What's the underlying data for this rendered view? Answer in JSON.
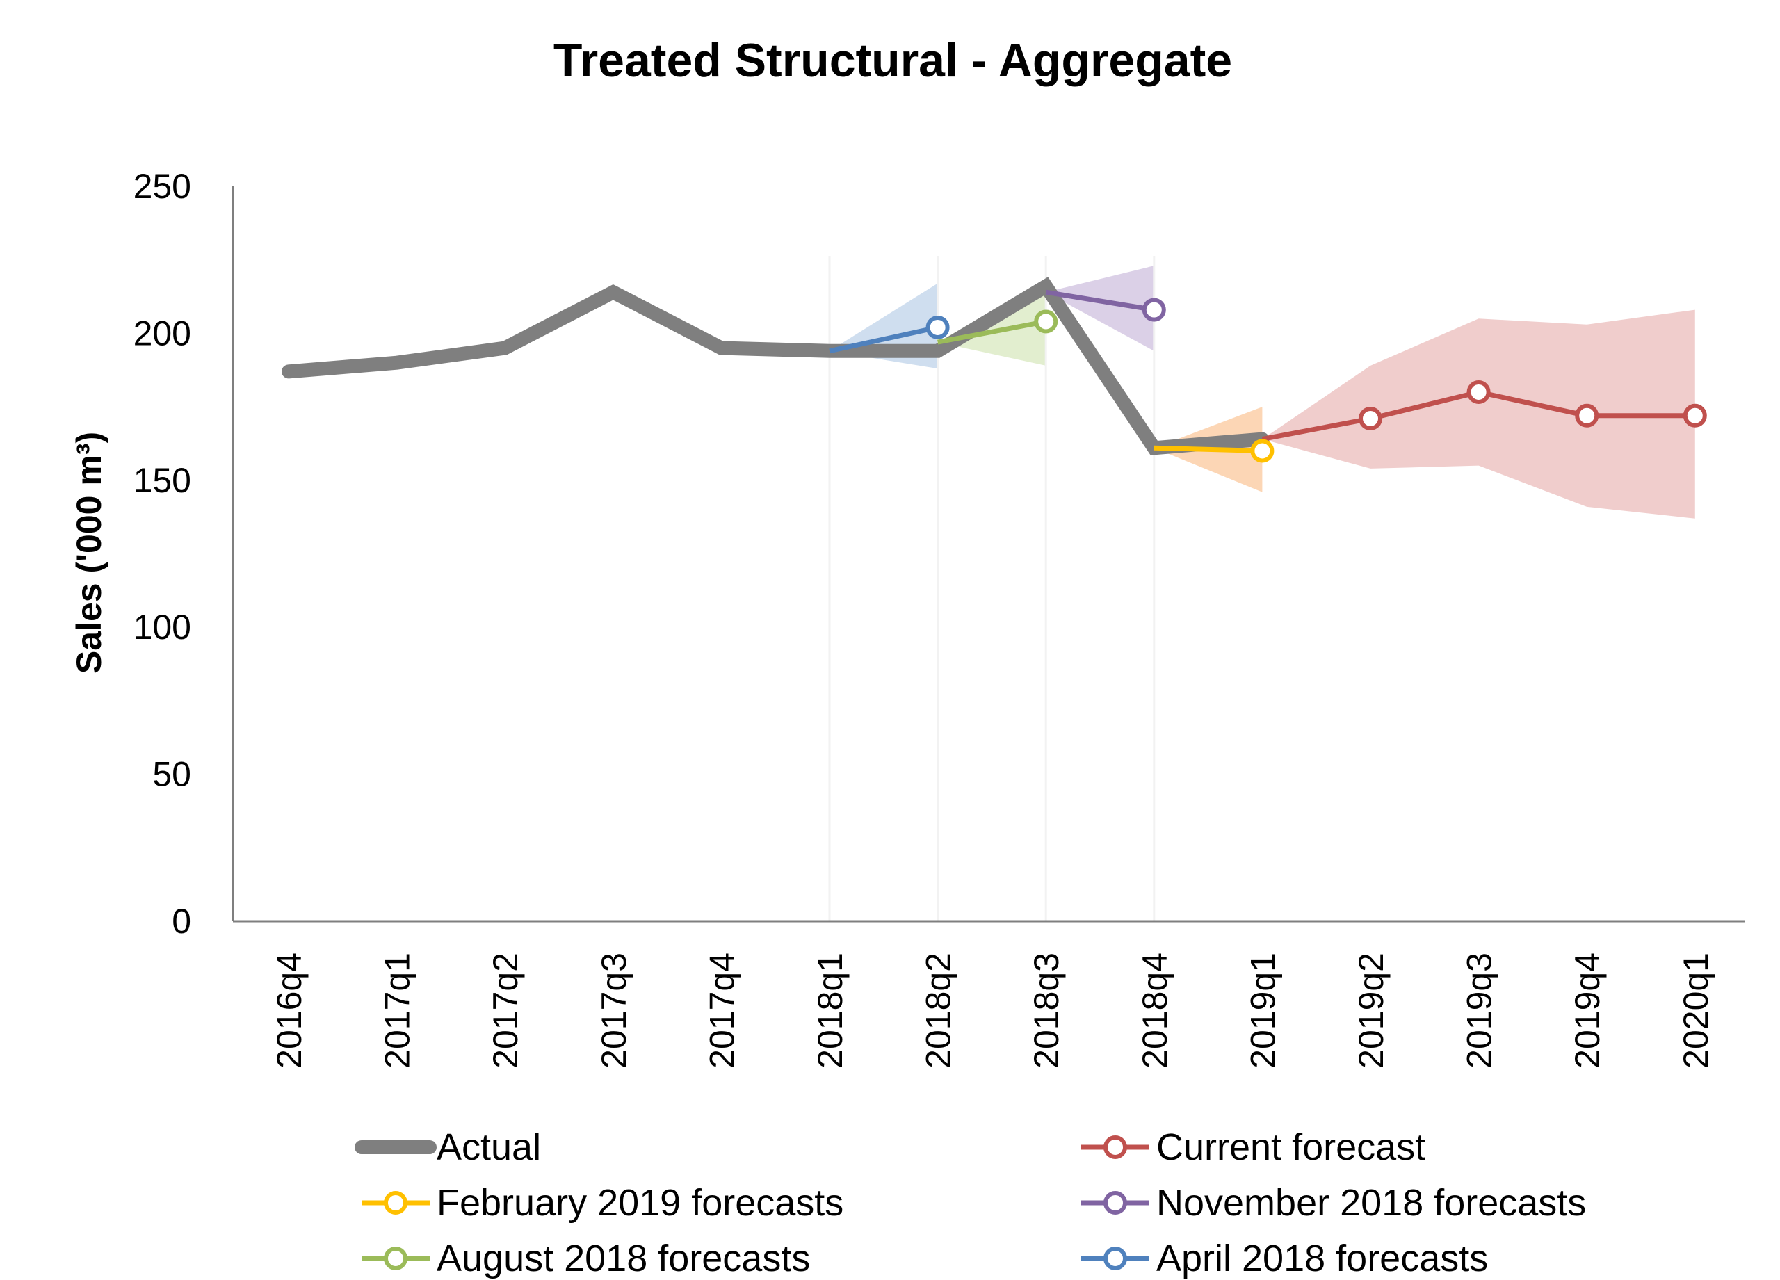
{
  "chart_data": {
    "type": "line",
    "title": "Treated Structural - Aggregate",
    "xlabel": "",
    "ylabel": "Sales ('000 m³)",
    "ylim": [
      0,
      250
    ],
    "yticks": [
      0,
      50,
      100,
      150,
      200,
      250
    ],
    "grid": false,
    "legend_position": "bottom",
    "categories": [
      "2016q4",
      "2017q1",
      "2017q2",
      "2017q3",
      "2017q4",
      "2018q1",
      "2018q2",
      "2018q3",
      "2018q4",
      "2019q1",
      "2019q2",
      "2019q3",
      "2019q4",
      "2020q1"
    ],
    "series": [
      {
        "name": "Actual",
        "color": "#7f7f7f",
        "marker": "none",
        "points": [
          {
            "x": "2016q4",
            "y": 187
          },
          {
            "x": "2017q1",
            "y": 190
          },
          {
            "x": "2017q2",
            "y": 195
          },
          {
            "x": "2017q3",
            "y": 214
          },
          {
            "x": "2017q4",
            "y": 195
          },
          {
            "x": "2018q1",
            "y": 194
          },
          {
            "x": "2018q2",
            "y": 194
          },
          {
            "x": "2018q3",
            "y": 216
          },
          {
            "x": "2018q4",
            "y": 161
          },
          {
            "x": "2019q1",
            "y": 164
          }
        ]
      },
      {
        "name": "Current forecast",
        "color": "#c0504d",
        "band_color": "#e8b2b0",
        "marker": "circle",
        "points": [
          {
            "x": "2019q1",
            "y": 164,
            "lo": 164,
            "hi": 164,
            "marker": false
          },
          {
            "x": "2019q2",
            "y": 171,
            "lo": 154,
            "hi": 189,
            "marker": true
          },
          {
            "x": "2019q3",
            "y": 180,
            "lo": 155,
            "hi": 205,
            "marker": true
          },
          {
            "x": "2019q4",
            "y": 172,
            "lo": 141,
            "hi": 203,
            "marker": true
          },
          {
            "x": "2020q1",
            "y": 172,
            "lo": 137,
            "hi": 208,
            "marker": true
          }
        ]
      },
      {
        "name": "February 2019 forecasts",
        "color": "#ffc000",
        "band_color": "#fbc08e",
        "marker": "circle",
        "points": [
          {
            "x": "2018q4",
            "y": 161,
            "lo": 161,
            "hi": 161,
            "marker": false
          },
          {
            "x": "2019q1",
            "y": 160,
            "lo": 146,
            "hi": 175,
            "marker": true
          }
        ]
      },
      {
        "name": "November 2018 forecasts",
        "color": "#8064a2",
        "band_color": "#c7b7da",
        "marker": "circle",
        "points": [
          {
            "x": "2018q3",
            "y": 214,
            "lo": 214,
            "hi": 214,
            "marker": false
          },
          {
            "x": "2018q4",
            "y": 208,
            "lo": 194,
            "hi": 223,
            "marker": true
          }
        ]
      },
      {
        "name": "August 2018 forecasts",
        "color": "#9bbb59",
        "band_color": "#d3e5b6",
        "marker": "circle",
        "points": [
          {
            "x": "2018q2",
            "y": 197,
            "lo": 197,
            "hi": 197,
            "marker": false
          },
          {
            "x": "2018q3",
            "y": 204,
            "lo": 189,
            "hi": 218,
            "marker": true
          }
        ]
      },
      {
        "name": "April 2018 forecasts",
        "color": "#4f81bd",
        "band_color": "#b6cde6",
        "marker": "circle",
        "points": [
          {
            "x": "2018q1",
            "y": 194,
            "lo": 194,
            "hi": 194,
            "marker": false
          },
          {
            "x": "2018q2",
            "y": 202,
            "lo": 188,
            "hi": 217,
            "marker": true
          }
        ]
      }
    ],
    "legend": [
      {
        "label": "Actual",
        "series": 0
      },
      {
        "label": "Current forecast",
        "series": 1
      },
      {
        "label": "February 2019 forecasts",
        "series": 2
      },
      {
        "label": "November 2018 forecasts",
        "series": 3
      },
      {
        "label": "August 2018 forecasts",
        "series": 4
      },
      {
        "label": "April 2018 forecasts",
        "series": 5
      }
    ]
  }
}
